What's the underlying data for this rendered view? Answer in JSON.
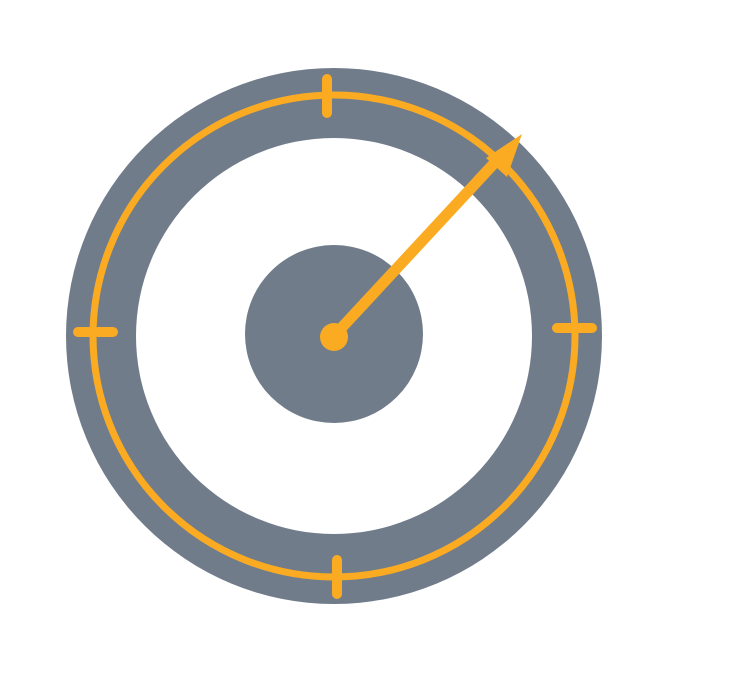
{
  "icon": {
    "name": "gauge-icon",
    "description_tag": "compass-gauge-icon"
  },
  "colors": {
    "dial": "#717c8b",
    "face": "#ffffff",
    "accent": "#fbab22",
    "background": "#ffffff"
  },
  "needle": {
    "value_fraction": 0.125,
    "heading_degrees": 45
  }
}
